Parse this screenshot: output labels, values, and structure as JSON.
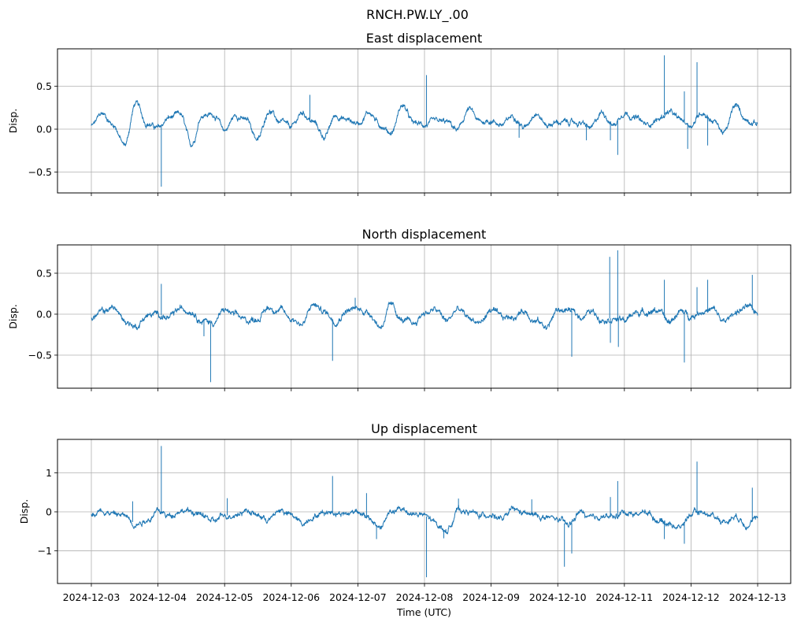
{
  "chart_data": [
    {
      "type": "line",
      "title": "East displacement",
      "xlabel": "",
      "ylabel": "Disp.",
      "ylim": [
        -0.743,
        0.936
      ],
      "yticks": [
        0.5,
        0.0,
        -0.5
      ],
      "ytick_labels": [
        "0.5",
        "0.0",
        "−0.5"
      ],
      "grid": true,
      "baseline_step_hours": 4,
      "baseline": [
        0.04,
        0.18,
        0.05,
        -0.19,
        0.3,
        0.07,
        0.01,
        0.13,
        0.17,
        -0.18,
        0.17,
        0.17,
        -0.01,
        0.16,
        0.1,
        -0.12,
        0.22,
        0.08,
        0.02,
        0.19,
        0.08,
        -0.09,
        0.16,
        0.11,
        0.07,
        0.2,
        0.05,
        -0.04,
        0.28,
        0.07,
        0.05,
        0.08,
        0.08,
        -0.01,
        0.23,
        0.08,
        0.1,
        0.05,
        0.16,
        0.02,
        0.2,
        0.05,
        0.08,
        0.08,
        0.07,
        0.01,
        0.2,
        0.05,
        0.2,
        0.13,
        0.05,
        0.11,
        0.2,
        0.11,
        0.05,
        0.2,
        0.1,
        -0.04,
        0.27,
        0.11,
        0.07
      ],
      "spikes": [
        [
          1.05,
          -0.67
        ],
        [
          3.28,
          0.4
        ],
        [
          5.03,
          0.63
        ],
        [
          6.42,
          -0.1
        ],
        [
          7.43,
          -0.13
        ],
        [
          7.79,
          -0.13
        ],
        [
          7.9,
          -0.3
        ],
        [
          8.6,
          0.86
        ],
        [
          8.9,
          0.44
        ],
        [
          8.95,
          -0.23
        ],
        [
          9.09,
          0.78
        ],
        [
          9.25,
          -0.19
        ]
      ],
      "noise": 0.03
    },
    {
      "type": "line",
      "title": "North displacement",
      "xlabel": "",
      "ylabel": "Disp.",
      "ylim": [
        -0.904,
        0.846
      ],
      "yticks": [
        0.5,
        0.0,
        -0.5
      ],
      "ytick_labels": [
        "0.5",
        "0.0",
        "−0.5"
      ],
      "grid": true,
      "baseline_step_hours": 4,
      "baseline": [
        -0.05,
        0.03,
        0.08,
        -0.08,
        -0.15,
        -0.02,
        0.0,
        -0.05,
        0.06,
        0.05,
        -0.08,
        -0.1,
        0.05,
        -0.02,
        -0.08,
        -0.05,
        0.08,
        0.05,
        -0.05,
        -0.12,
        0.12,
        0.03,
        -0.08,
        0.05,
        0.06,
        0.02,
        -0.15,
        0.1,
        -0.08,
        -0.12,
        0.02,
        0.05,
        -0.08,
        0.06,
        -0.05,
        -0.1,
        0.05,
        -0.05,
        -0.03,
        0.04,
        -0.08,
        -0.15,
        0.05,
        0.05,
        -0.03,
        0.03,
        -0.05,
        -0.05,
        -0.08,
        0.02,
        0.03,
        0.05,
        -0.1,
        0.03,
        -0.02,
        0.04,
        0.05,
        -0.1,
        0.03,
        0.08,
        0.02
      ],
      "spikes": [
        [
          1.05,
          0.37
        ],
        [
          1.69,
          -0.27
        ],
        [
          1.79,
          -0.83
        ],
        [
          3.62,
          -0.57
        ],
        [
          3.96,
          0.2
        ],
        [
          7.21,
          -0.52
        ],
        [
          7.78,
          0.7
        ],
        [
          7.79,
          -0.35
        ],
        [
          7.9,
          0.78
        ],
        [
          7.91,
          -0.4
        ],
        [
          8.6,
          0.42
        ],
        [
          8.9,
          -0.59
        ],
        [
          9.09,
          0.33
        ],
        [
          9.25,
          0.42
        ],
        [
          9.92,
          0.48
        ]
      ],
      "noise": 0.035
    },
    {
      "type": "line",
      "title": "Up displacement",
      "xlabel": "Time (UTC)",
      "ylabel": "Disp.",
      "ylim": [
        -1.84,
        1.86
      ],
      "yticks": [
        1,
        0,
        -1
      ],
      "ytick_labels": [
        "1",
        "0",
        "−1"
      ],
      "grid": true,
      "baseline_step_hours": 4,
      "baseline": [
        -0.05,
        0.05,
        -0.05,
        -0.1,
        -0.3,
        -0.2,
        0.0,
        -0.1,
        0.05,
        0.0,
        -0.1,
        -0.25,
        -0.1,
        -0.05,
        0.05,
        -0.1,
        -0.2,
        0.05,
        -0.1,
        -0.3,
        -0.1,
        0.0,
        0.0,
        -0.05,
        0.05,
        -0.2,
        -0.4,
        0.0,
        0.05,
        -0.05,
        -0.1,
        -0.3,
        -0.5,
        0.05,
        0.0,
        -0.1,
        -0.05,
        -0.2,
        0.05,
        -0.05,
        -0.1,
        -0.15,
        -0.2,
        -0.35,
        0.0,
        -0.2,
        -0.1,
        -0.15,
        0.0,
        -0.05,
        0.0,
        -0.2,
        -0.3,
        -0.4,
        -0.05,
        0.0,
        -0.1,
        -0.25,
        -0.1,
        -0.3,
        -0.2
      ],
      "spikes": [
        [
          0.62,
          0.27
        ],
        [
          1.05,
          1.69
        ],
        [
          2.04,
          0.35
        ],
        [
          3.62,
          0.92
        ],
        [
          4.13,
          0.48
        ],
        [
          4.28,
          -0.7
        ],
        [
          5.03,
          -1.68
        ],
        [
          5.29,
          -0.68
        ],
        [
          5.51,
          0.34
        ],
        [
          6.61,
          0.32
        ],
        [
          7.1,
          -1.41
        ],
        [
          7.21,
          -1.07
        ],
        [
          7.79,
          0.38
        ],
        [
          7.9,
          0.79
        ],
        [
          8.6,
          -0.7
        ],
        [
          8.9,
          -0.82
        ],
        [
          9.09,
          1.29
        ],
        [
          9.92,
          0.62
        ]
      ],
      "noise": 0.07
    }
  ],
  "figure": {
    "suptitle": "RNCH.PW.LY_.00",
    "start_date": "2024-12-03",
    "xlim_days": [
      -0.508,
      10.496
    ],
    "xtick_labels": [
      "2024-12-03",
      "2024-12-04",
      "2024-12-05",
      "2024-12-06",
      "2024-12-07",
      "2024-12-08",
      "2024-12-09",
      "2024-12-10",
      "2024-12-11",
      "2024-12-12",
      "2024-12-13"
    ],
    "line_color": "#1f77b4",
    "grid_color": "#b0b0b0"
  }
}
